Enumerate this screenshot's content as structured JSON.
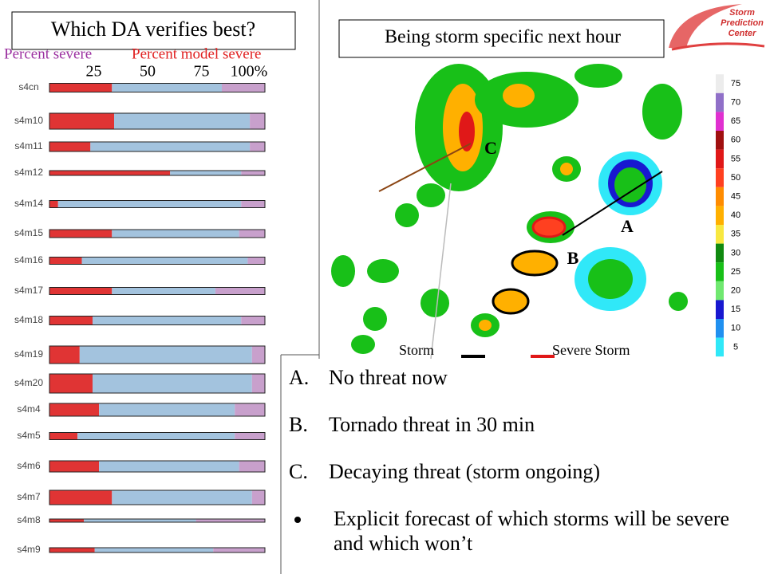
{
  "header": {
    "title": "Which DA  verifies best?",
    "subtitle": "Being storm specific next hour"
  },
  "logo": {
    "lines": [
      "Storm",
      "Prediction",
      "Center"
    ]
  },
  "chart_data": {
    "type": "bar",
    "orientation": "horizontal",
    "stacked": true,
    "categories": [
      "s4cn",
      "s4m10",
      "s4m11",
      "s4m12",
      "s4m14",
      "s4m15",
      "s4m16",
      "s4m17",
      "s4m18",
      "s4m19",
      "s4m20",
      "s4m4",
      "s4m5",
      "s4m6",
      "s4m7",
      "s4m8",
      "s4m9"
    ],
    "series": [
      {
        "name": "Percent model severe",
        "color": "#e03434",
        "values": [
          29,
          30,
          19,
          56,
          4,
          29,
          15,
          29,
          20,
          14,
          20,
          23,
          13,
          23,
          29,
          16,
          21
        ]
      },
      {
        "color": "#a3c3de",
        "values": [
          51,
          63,
          74,
          33,
          85,
          59,
          77,
          48,
          69,
          80,
          74,
          63,
          73,
          65,
          65,
          52,
          55
        ]
      },
      {
        "name": "Percent severe",
        "color": "#c8a0cc",
        "values": [
          20,
          7,
          7,
          11,
          11,
          12,
          8,
          23,
          11,
          6,
          6,
          14,
          14,
          12,
          6,
          32,
          24
        ]
      }
    ],
    "legend_colors": [
      "#9b30a0",
      "#e02020"
    ],
    "xlim": [
      0,
      100
    ],
    "xticks": [
      25,
      50,
      75,
      {
        "value": 100,
        "label": "100%"
      }
    ]
  },
  "radar": {
    "labels": [
      "A",
      "B",
      "C"
    ],
    "legend": [
      "Storm",
      "Severe Storm"
    ],
    "colorbar": {
      "ticks": [
        75,
        70,
        65,
        60,
        55,
        50,
        45,
        40,
        35,
        30,
        25,
        20,
        15,
        10,
        5
      ],
      "colors": [
        "#ececec",
        "#9070c8",
        "#e030d0",
        "#a01010",
        "#e01818",
        "#ff4020",
        "#ff8c00",
        "#ffb000",
        "#f8e840",
        "#108a10",
        "#18c018",
        "#70e870",
        "#1818d0",
        "#2090f0",
        "#30e8f8"
      ]
    }
  },
  "list": {
    "items": [
      {
        "marker": "A.",
        "text": "No threat now"
      },
      {
        "marker": "B.",
        "text": "Tornado threat in 30 min"
      },
      {
        "marker": "C.",
        "text": "Decaying threat (storm ongoing)"
      },
      {
        "text": "Explicit forecast of which storms will be severe and which won’t"
      }
    ]
  }
}
